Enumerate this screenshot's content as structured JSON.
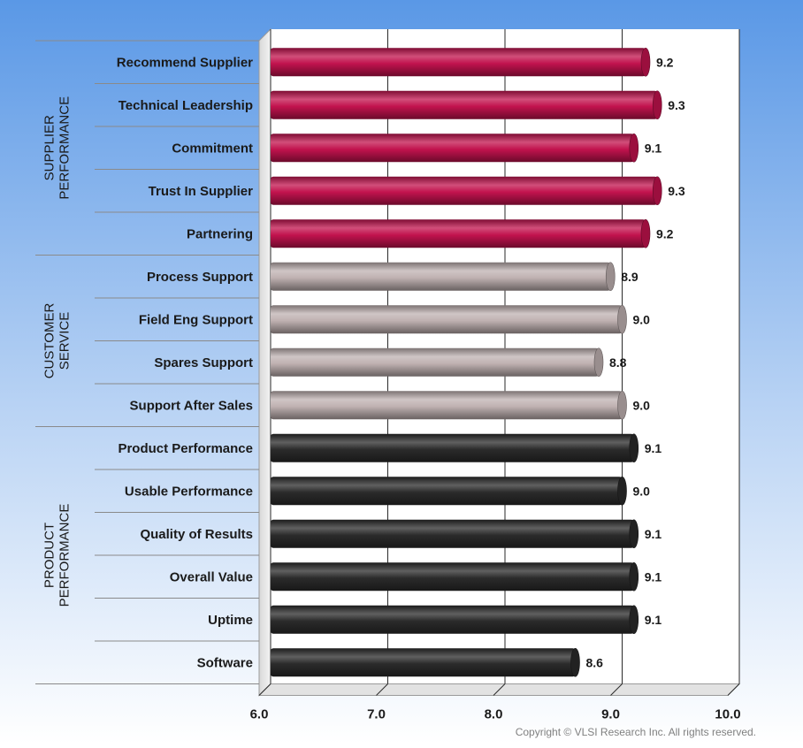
{
  "chart_data": {
    "type": "bar",
    "orientation": "horizontal",
    "groups": [
      {
        "label": "SUPPLIER PERFORMANCE",
        "lines": [
          "SUPPLIER",
          "PERFORMANCE"
        ],
        "color": "#c2134e",
        "categories": [
          "Recommend Supplier",
          "Technical Leadership",
          "Commitment",
          "Trust In Supplier",
          "Partnering"
        ],
        "values": [
          9.2,
          9.3,
          9.1,
          9.3,
          9.2
        ]
      },
      {
        "label": "CUSTOMER SERVICE",
        "lines": [
          "CUSTOMER",
          "SERVICE"
        ],
        "color": "#bfb1b1",
        "categories": [
          "Process Support",
          "Field Eng Support",
          "Spares Support",
          "Support After Sales"
        ],
        "values": [
          8.9,
          9.0,
          8.8,
          9.0
        ]
      },
      {
        "label": "PRODUCT PERFORMANCE",
        "lines": [
          "PRODUCT",
          "PERFORMANCE"
        ],
        "color": "#2b2b2b",
        "categories": [
          "Product Performance",
          "Usable Performance",
          "Quality of Results",
          "Overall Value",
          "Uptime",
          "Software"
        ],
        "values": [
          9.1,
          9.0,
          9.1,
          9.1,
          9.1,
          8.6
        ]
      }
    ],
    "xlim": [
      6.0,
      10.0
    ],
    "xticks": [
      "6.0",
      "7.0",
      "8.0",
      "9.0",
      "10.0"
    ],
    "grid": true,
    "legend": "none",
    "title": "",
    "xlabel": "",
    "ylabel": ""
  },
  "footer": {
    "copyright": "Copyright © VLSI Research Inc.  All rights reserved."
  },
  "colors": {
    "background_top": "#5f9de8",
    "background_bottom": "#ffffff",
    "plot_face": "#ffffff",
    "grid": "#222222"
  }
}
